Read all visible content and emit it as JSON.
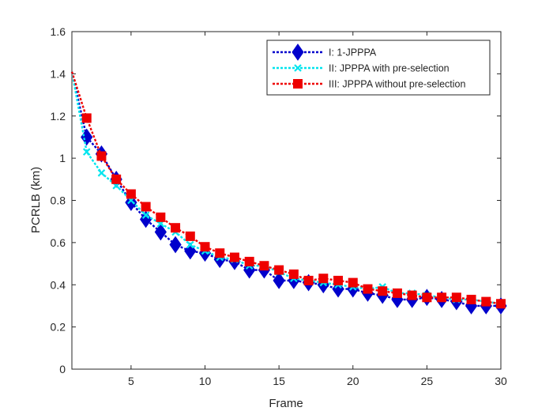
{
  "chart_data": {
    "type": "line",
    "xlabel": "Frame",
    "ylabel": "PCRLB (km)",
    "xlim": [
      1,
      30
    ],
    "ylim": [
      0,
      1.6
    ],
    "xticks": [
      5,
      10,
      15,
      20,
      25,
      30
    ],
    "yticks": [
      0,
      0.2,
      0.4,
      0.6,
      0.8,
      1,
      1.2,
      1.4,
      1.6
    ],
    "grid": false,
    "legend_position": "top-right",
    "series": [
      {
        "name": "I: 1-JPPPA",
        "color": "#0000cc",
        "marker": "diamond",
        "x": [
          1,
          2,
          3,
          4,
          5,
          6,
          7,
          8,
          9,
          10,
          11,
          12,
          13,
          14,
          15,
          16,
          17,
          18,
          19,
          20,
          21,
          22,
          23,
          24,
          25,
          26,
          27,
          28,
          29,
          30
        ],
        "y": [
          1.41,
          1.1,
          1.02,
          0.9,
          0.79,
          0.71,
          0.65,
          0.59,
          0.56,
          0.55,
          0.52,
          0.51,
          0.47,
          0.47,
          0.42,
          0.42,
          0.41,
          0.4,
          0.38,
          0.38,
          0.36,
          0.35,
          0.33,
          0.33,
          0.34,
          0.33,
          0.32,
          0.3,
          0.3,
          0.3
        ]
      },
      {
        "name": "II: JPPPA with pre-selection",
        "color": "#00e5ee",
        "marker": "x",
        "x": [
          1,
          2,
          3,
          4,
          5,
          6,
          7,
          8,
          9,
          10,
          11,
          12,
          13,
          14,
          15,
          16,
          17,
          18,
          19,
          20,
          21,
          22,
          23,
          24,
          25,
          26,
          27,
          28,
          29,
          30
        ],
        "y": [
          1.41,
          1.03,
          0.93,
          0.87,
          0.8,
          0.73,
          0.69,
          0.65,
          0.59,
          0.56,
          0.53,
          0.52,
          0.49,
          0.49,
          0.46,
          0.43,
          0.42,
          0.41,
          0.4,
          0.39,
          0.38,
          0.39,
          0.36,
          0.36,
          0.35,
          0.34,
          0.33,
          0.33,
          0.32,
          0.31
        ]
      },
      {
        "name": "III: JPPPA without pre-selection",
        "color": "#ee0000",
        "marker": "square",
        "x": [
          1,
          2,
          3,
          4,
          5,
          6,
          7,
          8,
          9,
          10,
          11,
          12,
          13,
          14,
          15,
          16,
          17,
          18,
          19,
          20,
          21,
          22,
          23,
          24,
          25,
          26,
          27,
          28,
          29,
          30
        ],
        "y": [
          1.41,
          1.19,
          1.01,
          0.9,
          0.83,
          0.77,
          0.72,
          0.67,
          0.63,
          0.58,
          0.55,
          0.53,
          0.51,
          0.49,
          0.47,
          0.45,
          0.42,
          0.43,
          0.42,
          0.41,
          0.38,
          0.37,
          0.36,
          0.35,
          0.34,
          0.34,
          0.34,
          0.33,
          0.32,
          0.31
        ]
      }
    ]
  }
}
